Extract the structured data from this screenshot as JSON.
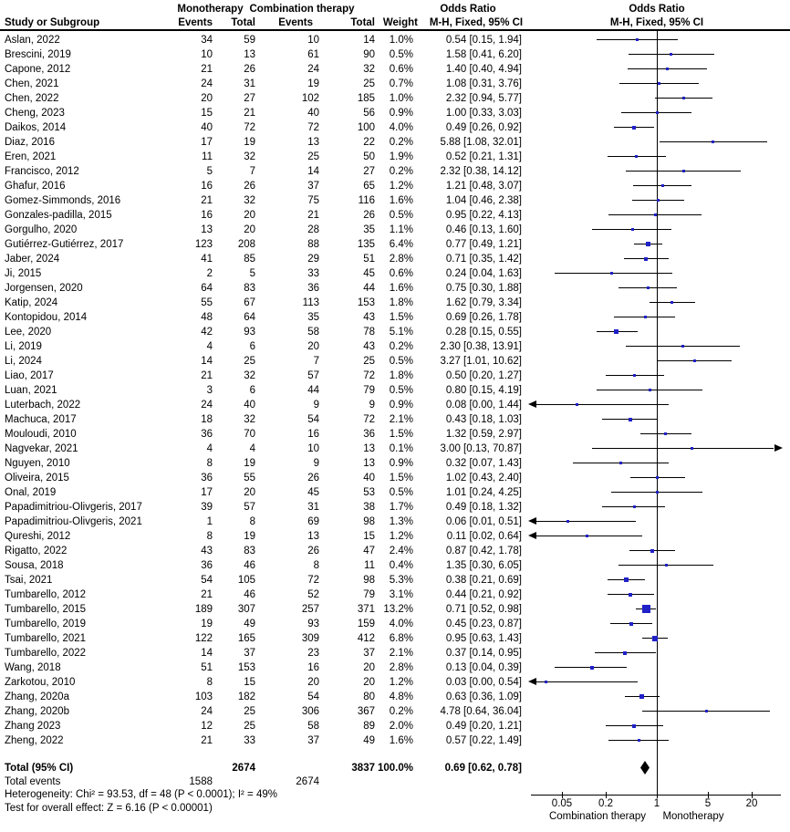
{
  "header": {
    "study_col": "Study or Subgroup",
    "group1": "Monotherapy",
    "group2": "Combination therapy",
    "events_col1": "Events",
    "total_col1": "Total",
    "events_col2": "Events",
    "total_col2": "Total",
    "weight_col": "Weight",
    "or_text_title": "Odds Ratio",
    "or_text_subtitle": "M-H, Fixed, 95% CI",
    "or_plot_title": "Odds Ratio",
    "or_plot_subtitle": "M-H, Fixed, 95% CI"
  },
  "colors": {
    "marker": "#2121c8",
    "ci_line": "#000000",
    "diamond": "#000000",
    "text": "#000000"
  },
  "chart_data": {
    "type": "forest",
    "effect_measure": "Odds Ratio (M-H, Fixed, 95% CI)",
    "x_axis": {
      "scale": "log",
      "ticks": [
        0.05,
        0.2,
        1,
        5,
        20
      ],
      "tick_labels": [
        "0.05",
        "0.2",
        "1",
        "5",
        "20"
      ],
      "left_label": "Combination therapy",
      "right_label": "Monotherapy",
      "null_value": 1
    },
    "studies": [
      {
        "name": "Aslan, 2022",
        "e1": 34,
        "t1": 59,
        "e2": 10,
        "t2": 14,
        "weight": "1.0%",
        "ci": "0.54 [0.15, 1.94]",
        "or": 0.54,
        "lo": 0.15,
        "hi": 1.94
      },
      {
        "name": "Brescini, 2019",
        "e1": 10,
        "t1": 13,
        "e2": 61,
        "t2": 90,
        "weight": "0.5%",
        "ci": "1.58 [0.41, 6.20]",
        "or": 1.58,
        "lo": 0.41,
        "hi": 6.2
      },
      {
        "name": "Capone, 2012",
        "e1": 21,
        "t1": 26,
        "e2": 24,
        "t2": 32,
        "weight": "0.6%",
        "ci": "1.40 [0.40, 4.94]",
        "or": 1.4,
        "lo": 0.4,
        "hi": 4.94
      },
      {
        "name": "Chen, 2021",
        "e1": 24,
        "t1": 31,
        "e2": 19,
        "t2": 25,
        "weight": "0.7%",
        "ci": "1.08 [0.31, 3.76]",
        "or": 1.08,
        "lo": 0.31,
        "hi": 3.76
      },
      {
        "name": "Chen, 2022",
        "e1": 20,
        "t1": 27,
        "e2": 102,
        "t2": 185,
        "weight": "1.0%",
        "ci": "2.32 [0.94, 5.77]",
        "or": 2.32,
        "lo": 0.94,
        "hi": 5.77
      },
      {
        "name": "Cheng, 2023",
        "e1": 15,
        "t1": 21,
        "e2": 40,
        "t2": 56,
        "weight": "0.9%",
        "ci": "1.00 [0.33, 3.03]",
        "or": 1.0,
        "lo": 0.33,
        "hi": 3.03
      },
      {
        "name": "Daikos, 2014",
        "e1": 40,
        "t1": 72,
        "e2": 72,
        "t2": 100,
        "weight": "4.0%",
        "ci": "0.49 [0.26, 0.92]",
        "or": 0.49,
        "lo": 0.26,
        "hi": 0.92
      },
      {
        "name": "Diaz, 2016",
        "e1": 17,
        "t1": 19,
        "e2": 13,
        "t2": 22,
        "weight": "0.2%",
        "ci": "5.88 [1.08, 32.01]",
        "or": 5.88,
        "lo": 1.08,
        "hi": 32.01
      },
      {
        "name": "Eren, 2021",
        "e1": 11,
        "t1": 32,
        "e2": 25,
        "t2": 50,
        "weight": "1.9%",
        "ci": "0.52 [0.21, 1.31]",
        "or": 0.52,
        "lo": 0.21,
        "hi": 1.31
      },
      {
        "name": "Francisco, 2012",
        "e1": 5,
        "t1": 7,
        "e2": 14,
        "t2": 27,
        "weight": "0.2%",
        "ci": "2.32 [0.38, 14.12]",
        "or": 2.32,
        "lo": 0.38,
        "hi": 14.12
      },
      {
        "name": "Ghafur, 2016",
        "e1": 16,
        "t1": 26,
        "e2": 37,
        "t2": 65,
        "weight": "1.2%",
        "ci": "1.21 [0.48, 3.07]",
        "or": 1.21,
        "lo": 0.48,
        "hi": 3.07
      },
      {
        "name": "Gomez-Simmonds, 2016",
        "e1": 21,
        "t1": 32,
        "e2": 75,
        "t2": 116,
        "weight": "1.6%",
        "ci": "1.04 [0.46, 2.38]",
        "or": 1.04,
        "lo": 0.46,
        "hi": 2.38
      },
      {
        "name": "Gonzales-padilla, 2015",
        "e1": 16,
        "t1": 20,
        "e2": 21,
        "t2": 26,
        "weight": "0.5%",
        "ci": "0.95 [0.22, 4.13]",
        "or": 0.95,
        "lo": 0.22,
        "hi": 4.13
      },
      {
        "name": "Gorgulho, 2020",
        "e1": 13,
        "t1": 20,
        "e2": 28,
        "t2": 35,
        "weight": "1.1%",
        "ci": "0.46 [0.13, 1.60]",
        "or": 0.46,
        "lo": 0.13,
        "hi": 1.6
      },
      {
        "name": "Gutiérrez-Gutiérrez, 2017",
        "e1": 123,
        "t1": 208,
        "e2": 88,
        "t2": 135,
        "weight": "6.4%",
        "ci": "0.77 [0.49, 1.21]",
        "or": 0.77,
        "lo": 0.49,
        "hi": 1.21
      },
      {
        "name": "Jaber, 2024",
        "e1": 41,
        "t1": 85,
        "e2": 29,
        "t2": 51,
        "weight": "2.8%",
        "ci": "0.71 [0.35, 1.42]",
        "or": 0.71,
        "lo": 0.35,
        "hi": 1.42
      },
      {
        "name": "Ji, 2015",
        "e1": 2,
        "t1": 5,
        "e2": 33,
        "t2": 45,
        "weight": "0.6%",
        "ci": "0.24 [0.04, 1.63]",
        "or": 0.24,
        "lo": 0.04,
        "hi": 1.63
      },
      {
        "name": "Jorgensen, 2020",
        "e1": 64,
        "t1": 83,
        "e2": 36,
        "t2": 44,
        "weight": "1.6%",
        "ci": "0.75 [0.30, 1.88]",
        "or": 0.75,
        "lo": 0.3,
        "hi": 1.88
      },
      {
        "name": "Katip, 2024",
        "e1": 55,
        "t1": 67,
        "e2": 113,
        "t2": 153,
        "weight": "1.8%",
        "ci": "1.62 [0.79, 3.34]",
        "or": 1.62,
        "lo": 0.79,
        "hi": 3.34
      },
      {
        "name": "Kontopidou, 2014",
        "e1": 48,
        "t1": 64,
        "e2": 35,
        "t2": 43,
        "weight": "1.5%",
        "ci": "0.69 [0.26, 1.78]",
        "or": 0.69,
        "lo": 0.26,
        "hi": 1.78
      },
      {
        "name": "Lee, 2020",
        "e1": 42,
        "t1": 93,
        "e2": 58,
        "t2": 78,
        "weight": "5.1%",
        "ci": "0.28 [0.15, 0.55]",
        "or": 0.28,
        "lo": 0.15,
        "hi": 0.55
      },
      {
        "name": "Li, 2019",
        "e1": 4,
        "t1": 6,
        "e2": 20,
        "t2": 43,
        "weight": "0.2%",
        "ci": "2.30 [0.38, 13.91]",
        "or": 2.3,
        "lo": 0.38,
        "hi": 13.91
      },
      {
        "name": "Li, 2024",
        "e1": 14,
        "t1": 25,
        "e2": 7,
        "t2": 25,
        "weight": "0.5%",
        "ci": "3.27 [1.01, 10.62]",
        "or": 3.27,
        "lo": 1.01,
        "hi": 10.62
      },
      {
        "name": "Liao, 2017",
        "e1": 21,
        "t1": 32,
        "e2": 57,
        "t2": 72,
        "weight": "1.8%",
        "ci": "0.50 [0.20, 1.27]",
        "or": 0.5,
        "lo": 0.2,
        "hi": 1.27
      },
      {
        "name": "Luan, 2021",
        "e1": 3,
        "t1": 6,
        "e2": 44,
        "t2": 79,
        "weight": "0.5%",
        "ci": "0.80 [0.15, 4.19]",
        "or": 0.8,
        "lo": 0.15,
        "hi": 4.19
      },
      {
        "name": "Luterbach, 2022",
        "e1": 24,
        "t1": 40,
        "e2": 9,
        "t2": 9,
        "weight": "0.9%",
        "ci": "0.08 [0.00, 1.44]",
        "or": 0.08,
        "lo": 0,
        "hi": 1.44
      },
      {
        "name": "Machuca, 2017",
        "e1": 18,
        "t1": 32,
        "e2": 54,
        "t2": 72,
        "weight": "2.1%",
        "ci": "0.43 [0.18, 1.03]",
        "or": 0.43,
        "lo": 0.18,
        "hi": 1.03
      },
      {
        "name": "Mouloudi, 2010",
        "e1": 36,
        "t1": 70,
        "e2": 16,
        "t2": 36,
        "weight": "1.5%",
        "ci": "1.32 [0.59, 2.97]",
        "or": 1.32,
        "lo": 0.59,
        "hi": 2.97
      },
      {
        "name": "Nagvekar, 2021",
        "e1": 4,
        "t1": 4,
        "e2": 10,
        "t2": 13,
        "weight": "0.1%",
        "ci": "3.00 [0.13, 70.87]",
        "or": 3.0,
        "lo": 0.13,
        "hi": 70.87
      },
      {
        "name": "Nguyen, 2010",
        "e1": 8,
        "t1": 19,
        "e2": 9,
        "t2": 13,
        "weight": "0.9%",
        "ci": "0.32 [0.07, 1.43]",
        "or": 0.32,
        "lo": 0.07,
        "hi": 1.43
      },
      {
        "name": "Oliveira, 2015",
        "e1": 36,
        "t1": 55,
        "e2": 26,
        "t2": 40,
        "weight": "1.5%",
        "ci": "1.02 [0.43, 2.40]",
        "or": 1.02,
        "lo": 0.43,
        "hi": 2.4
      },
      {
        "name": "Onal, 2019",
        "e1": 17,
        "t1": 20,
        "e2": 45,
        "t2": 53,
        "weight": "0.5%",
        "ci": "1.01 [0.24, 4.25]",
        "or": 1.01,
        "lo": 0.24,
        "hi": 4.25
      },
      {
        "name": "Papadimitriou-Olivgeris, 2017",
        "e1": 39,
        "t1": 57,
        "e2": 31,
        "t2": 38,
        "weight": "1.7%",
        "ci": "0.49 [0.18, 1.32]",
        "or": 0.49,
        "lo": 0.18,
        "hi": 1.32
      },
      {
        "name": "Papadimitriou-Olivgeris, 2021",
        "e1": 1,
        "t1": 8,
        "e2": 69,
        "t2": 98,
        "weight": "1.3%",
        "ci": "0.06 [0.01, 0.51]",
        "or": 0.06,
        "lo": 0.01,
        "hi": 0.51
      },
      {
        "name": "Qureshi, 2012",
        "e1": 8,
        "t1": 19,
        "e2": 13,
        "t2": 15,
        "weight": "1.2%",
        "ci": "0.11 [0.02, 0.64]",
        "or": 0.11,
        "lo": 0.02,
        "hi": 0.64
      },
      {
        "name": "Rigatto, 2022",
        "e1": 43,
        "t1": 83,
        "e2": 26,
        "t2": 47,
        "weight": "2.4%",
        "ci": "0.87 [0.42, 1.78]",
        "or": 0.87,
        "lo": 0.42,
        "hi": 1.78
      },
      {
        "name": "Sousa, 2018",
        "e1": 36,
        "t1": 46,
        "e2": 8,
        "t2": 11,
        "weight": "0.4%",
        "ci": "1.35 [0.30, 6.05]",
        "or": 1.35,
        "lo": 0.3,
        "hi": 6.05
      },
      {
        "name": "Tsai, 2021",
        "e1": 54,
        "t1": 105,
        "e2": 72,
        "t2": 98,
        "weight": "5.3%",
        "ci": "0.38 [0.21, 0.69]",
        "or": 0.38,
        "lo": 0.21,
        "hi": 0.69
      },
      {
        "name": "Tumbarello, 2012",
        "e1": 21,
        "t1": 46,
        "e2": 52,
        "t2": 79,
        "weight": "3.1%",
        "ci": "0.44 [0.21, 0.92]",
        "or": 0.44,
        "lo": 0.21,
        "hi": 0.92
      },
      {
        "name": "Tumbarello, 2015",
        "e1": 189,
        "t1": 307,
        "e2": 257,
        "t2": 371,
        "weight": "13.2%",
        "ci": "0.71 [0.52, 0.98]",
        "or": 0.71,
        "lo": 0.52,
        "hi": 0.98
      },
      {
        "name": "Tumbarello, 2019",
        "e1": 19,
        "t1": 49,
        "e2": 93,
        "t2": 159,
        "weight": "4.0%",
        "ci": "0.45 [0.23, 0.87]",
        "or": 0.45,
        "lo": 0.23,
        "hi": 0.87
      },
      {
        "name": "Tumbarello, 2021",
        "e1": 122,
        "t1": 165,
        "e2": 309,
        "t2": 412,
        "weight": "6.8%",
        "ci": "0.95 [0.63, 1.43]",
        "or": 0.95,
        "lo": 0.63,
        "hi": 1.43
      },
      {
        "name": "Tumbarello, 2022",
        "e1": 14,
        "t1": 37,
        "e2": 23,
        "t2": 37,
        "weight": "2.1%",
        "ci": "0.37 [0.14, 0.95]",
        "or": 0.37,
        "lo": 0.14,
        "hi": 0.95
      },
      {
        "name": "Wang, 2018",
        "e1": 51,
        "t1": 153,
        "e2": 16,
        "t2": 20,
        "weight": "2.8%",
        "ci": "0.13 [0.04, 0.39]",
        "or": 0.13,
        "lo": 0.04,
        "hi": 0.39
      },
      {
        "name": "Zarkotou, 2010",
        "e1": 8,
        "t1": 15,
        "e2": 20,
        "t2": 20,
        "weight": "1.2%",
        "ci": "0.03 [0.00, 0.54]",
        "or": 0.03,
        "lo": 0,
        "hi": 0.54
      },
      {
        "name": "Zhang, 2020a",
        "e1": 103,
        "t1": 182,
        "e2": 54,
        "t2": 80,
        "weight": "4.8%",
        "ci": "0.63 [0.36, 1.09]",
        "or": 0.63,
        "lo": 0.36,
        "hi": 1.09
      },
      {
        "name": "Zhang, 2020b",
        "e1": 24,
        "t1": 25,
        "e2": 306,
        "t2": 367,
        "weight": "0.2%",
        "ci": "4.78 [0.64, 36.04]",
        "or": 4.78,
        "lo": 0.64,
        "hi": 36.04
      },
      {
        "name": "Zhang 2023",
        "e1": 12,
        "t1": 25,
        "e2": 58,
        "t2": 89,
        "weight": "2.0%",
        "ci": "0.49 [0.20, 1.21]",
        "or": 0.49,
        "lo": 0.2,
        "hi": 1.21
      },
      {
        "name": "Zheng, 2022",
        "e1": 21,
        "t1": 33,
        "e2": 37,
        "t2": 49,
        "weight": "1.6%",
        "ci": "0.57 [0.22, 1.49]",
        "or": 0.57,
        "lo": 0.22,
        "hi": 1.49
      }
    ],
    "total": {
      "label": "Total (95% CI)",
      "t1": 2674,
      "t2": 3837,
      "weight": "100.0%",
      "ci": "0.69 [0.62, 0.78]",
      "or": 0.69,
      "lo": 0.62,
      "hi": 0.78
    },
    "total_events": {
      "label": "Total events",
      "e1": 1588,
      "e2": 2674
    },
    "heterogeneity": "Heterogeneity: Chi² = 93.53, df = 48 (P < 0.0001); I² = 49%",
    "overall_effect": "Test for overall effect: Z = 6.16 (P < 0.00001)"
  }
}
